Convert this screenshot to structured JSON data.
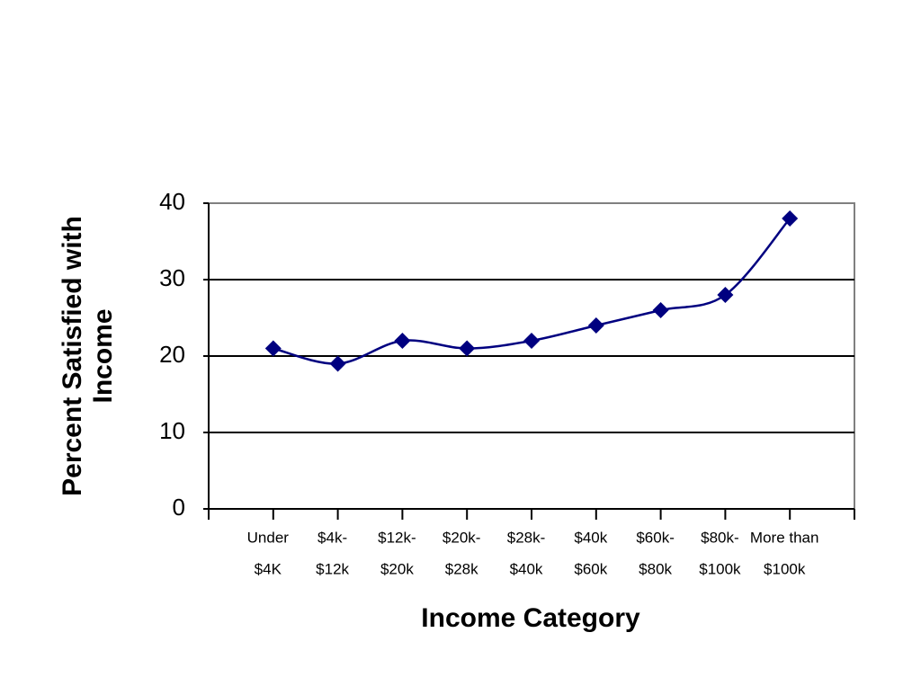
{
  "chart_data": {
    "type": "line",
    "xlabel": "Income Category",
    "ylabel": [
      "Percent Satisfied with",
      "Income"
    ],
    "categories": [
      [
        "Under",
        "$4K"
      ],
      [
        "$4k-",
        "$12k"
      ],
      [
        "$12k-",
        "$20k"
      ],
      [
        "$20k-",
        "$28k"
      ],
      [
        "$28k-",
        "$40k"
      ],
      [
        "$40k",
        "$60k"
      ],
      [
        "$60k-",
        "$80k"
      ],
      [
        "$80k-",
        "$100k"
      ],
      [
        "More than",
        "$100k"
      ]
    ],
    "values": [
      21,
      19,
      22,
      21,
      22,
      24,
      26,
      28,
      38
    ],
    "color": "#000080",
    "ylim": [
      0,
      40
    ],
    "yticks": [
      0,
      10,
      20,
      30,
      40
    ],
    "grid": true
  }
}
